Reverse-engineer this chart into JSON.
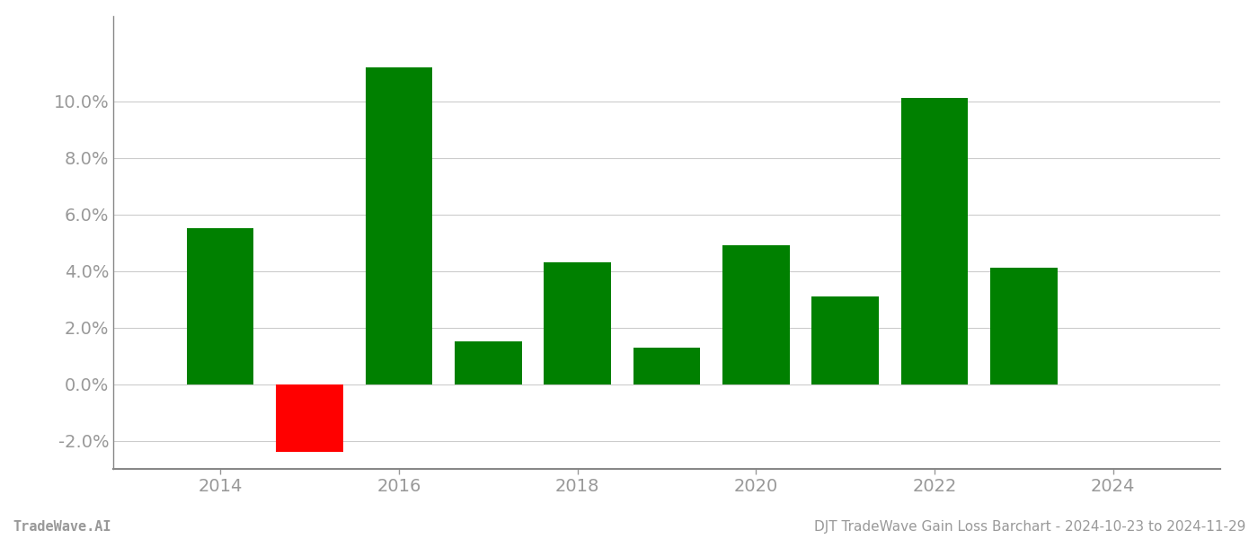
{
  "years": [
    2014,
    2015,
    2016,
    2017,
    2018,
    2019,
    2020,
    2021,
    2022,
    2023
  ],
  "values": [
    0.055,
    -0.024,
    0.112,
    0.015,
    0.043,
    0.013,
    0.049,
    0.031,
    0.101,
    0.041
  ],
  "colors": [
    "#008000",
    "#ff0000",
    "#008000",
    "#008000",
    "#008000",
    "#008000",
    "#008000",
    "#008000",
    "#008000",
    "#008000"
  ],
  "footer_left": "TradeWave.AI",
  "footer_right": "DJT TradeWave Gain Loss Barchart - 2024-10-23 to 2024-11-29",
  "ylim_min": -0.03,
  "ylim_max": 0.13,
  "xlim_min": 2012.8,
  "xlim_max": 2025.2,
  "background_color": "#ffffff",
  "grid_color": "#cccccc",
  "bar_width": 0.75,
  "tick_label_color": "#999999",
  "spine_color": "#888888",
  "xticks": [
    2014,
    2016,
    2018,
    2020,
    2022,
    2024
  ],
  "ytick_step": 0.02,
  "footer_fontsize": 11,
  "tick_fontsize": 14
}
